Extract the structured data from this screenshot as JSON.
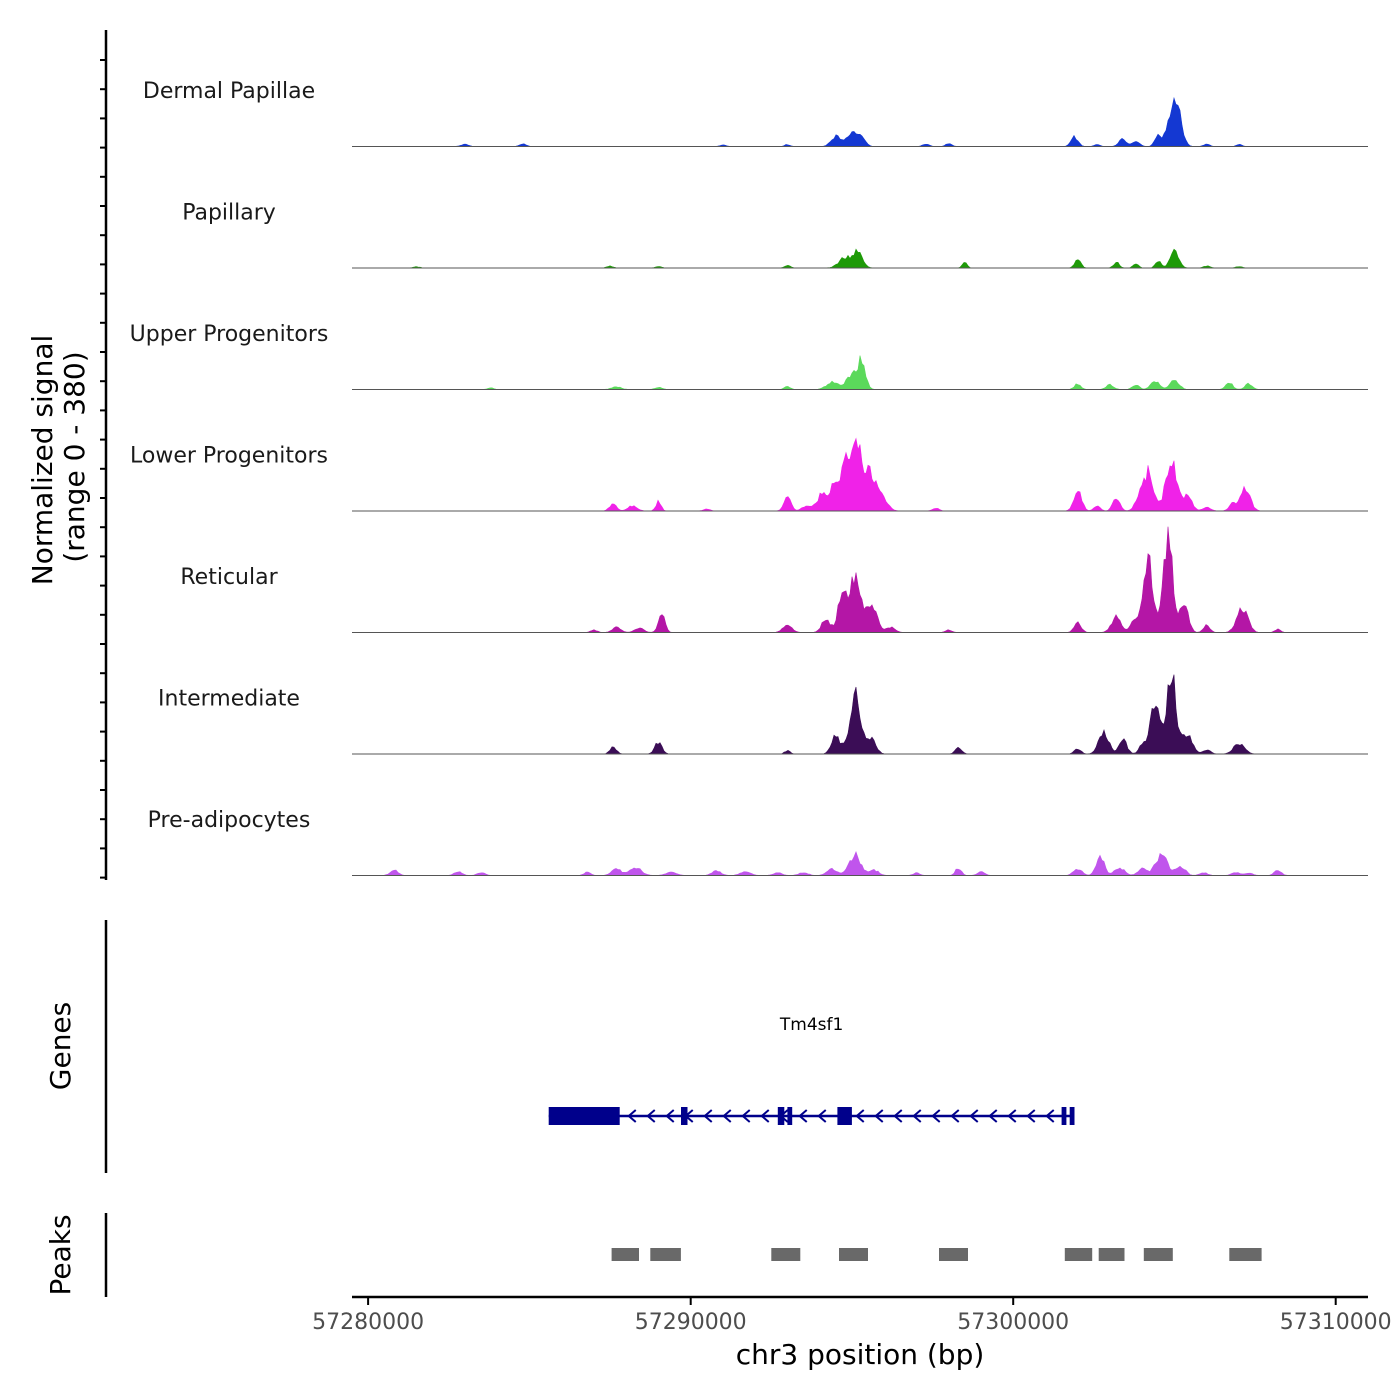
{
  "chart_data": {
    "type": "area",
    "title": "",
    "ylabel": "Normalized signal",
    "ylabel_range": "(range 0 - 380)",
    "y_range": [
      0,
      380
    ],
    "chromosome": "chr3",
    "xlabel": "chr3 position (bp)",
    "xlim": [
      57279500,
      57311000
    ],
    "x_ticks": [
      57280000,
      57290000,
      57300000,
      57310000
    ],
    "x_tick_labels": [
      "57280000",
      "57290000",
      "57300000",
      "57310000"
    ],
    "tracks": [
      {
        "name": "Dermal Papillae",
        "color": "#1438d2",
        "peaks": [
          [
            57283000,
            8,
            120
          ],
          [
            57284800,
            10,
            100
          ],
          [
            57291000,
            6,
            90
          ],
          [
            57293000,
            8,
            80
          ],
          [
            57294500,
            40,
            150
          ],
          [
            57295000,
            50,
            160
          ],
          [
            57295300,
            35,
            120
          ],
          [
            57297300,
            10,
            100
          ],
          [
            57298000,
            12,
            90
          ],
          [
            57301900,
            38,
            110
          ],
          [
            57302600,
            8,
            90
          ],
          [
            57303400,
            28,
            120
          ],
          [
            57303800,
            22,
            110
          ],
          [
            57304500,
            48,
            100
          ],
          [
            57305000,
            200,
            170
          ],
          [
            57306000,
            10,
            90
          ],
          [
            57307000,
            9,
            80
          ]
        ]
      },
      {
        "name": "Papillary",
        "color": "#1e9a08",
        "peaks": [
          [
            57281500,
            5,
            100
          ],
          [
            57287500,
            8,
            90
          ],
          [
            57289000,
            6,
            100
          ],
          [
            57293000,
            10,
            90
          ],
          [
            57294800,
            40,
            200
          ],
          [
            57295200,
            60,
            140
          ],
          [
            57298500,
            25,
            70
          ],
          [
            57302000,
            38,
            90
          ],
          [
            57303200,
            22,
            90
          ],
          [
            57303800,
            18,
            80
          ],
          [
            57304500,
            25,
            90
          ],
          [
            57305000,
            65,
            130
          ],
          [
            57306000,
            8,
            100
          ],
          [
            57307000,
            6,
            100
          ]
        ]
      },
      {
        "name": "Upper Progenitors",
        "color": "#5bd95b",
        "peaks": [
          [
            57283800,
            6,
            100
          ],
          [
            57287700,
            10,
            150
          ],
          [
            57289000,
            8,
            120
          ],
          [
            57293000,
            12,
            90
          ],
          [
            57294400,
            30,
            180
          ],
          [
            57295000,
            55,
            180
          ],
          [
            57295300,
            100,
            120
          ],
          [
            57302000,
            22,
            100
          ],
          [
            57303000,
            18,
            120
          ],
          [
            57303800,
            20,
            100
          ],
          [
            57304400,
            32,
            140
          ],
          [
            57305000,
            38,
            140
          ],
          [
            57306700,
            25,
            110
          ],
          [
            57307300,
            22,
            110
          ]
        ]
      },
      {
        "name": "Lower Progenitors",
        "color": "#f022e8",
        "peaks": [
          [
            57287600,
            28,
            110
          ],
          [
            57288200,
            20,
            140
          ],
          [
            57289000,
            36,
            80
          ],
          [
            57290500,
            8,
            100
          ],
          [
            57293000,
            55,
            110
          ],
          [
            57293600,
            22,
            140
          ],
          [
            57294100,
            70,
            160
          ],
          [
            57294500,
            110,
            140
          ],
          [
            57294800,
            190,
            110
          ],
          [
            57295150,
            260,
            170
          ],
          [
            57295600,
            140,
            180
          ],
          [
            57296000,
            40,
            150
          ],
          [
            57297600,
            12,
            100
          ],
          [
            57302000,
            80,
            120
          ],
          [
            57302600,
            20,
            100
          ],
          [
            57303200,
            50,
            110
          ],
          [
            57303900,
            45,
            130
          ],
          [
            57304200,
            150,
            150
          ],
          [
            57304900,
            200,
            170
          ],
          [
            57305400,
            60,
            140
          ],
          [
            57306000,
            15,
            120
          ],
          [
            57306800,
            30,
            110
          ],
          [
            57307200,
            85,
            150
          ]
        ]
      },
      {
        "name": "Reticular",
        "color": "#b416a6",
        "peaks": [
          [
            57287000,
            10,
            100
          ],
          [
            57287700,
            22,
            130
          ],
          [
            57288400,
            18,
            140
          ],
          [
            57289100,
            68,
            100
          ],
          [
            57293000,
            26,
            150
          ],
          [
            57294200,
            50,
            140
          ],
          [
            57294700,
            150,
            130
          ],
          [
            57295100,
            220,
            170
          ],
          [
            57295600,
            110,
            170
          ],
          [
            57296200,
            20,
            140
          ],
          [
            57298000,
            10,
            100
          ],
          [
            57302000,
            38,
            110
          ],
          [
            57303200,
            60,
            150
          ],
          [
            57303800,
            60,
            140
          ],
          [
            57304200,
            280,
            140
          ],
          [
            57304800,
            360,
            150
          ],
          [
            57305300,
            120,
            130
          ],
          [
            57306000,
            30,
            100
          ],
          [
            57307100,
            95,
            170
          ],
          [
            57308200,
            12,
            90
          ]
        ]
      },
      {
        "name": "Intermediate",
        "color": "#3b0d56",
        "peaks": [
          [
            57287600,
            26,
            100
          ],
          [
            57289000,
            45,
            110
          ],
          [
            57293000,
            14,
            80
          ],
          [
            57294500,
            75,
            130
          ],
          [
            57295100,
            230,
            170
          ],
          [
            57295600,
            60,
            140
          ],
          [
            57298300,
            25,
            100
          ],
          [
            57302000,
            22,
            100
          ],
          [
            57302800,
            90,
            150
          ],
          [
            57303400,
            60,
            120
          ],
          [
            57304000,
            40,
            100
          ],
          [
            57304400,
            200,
            150
          ],
          [
            57304900,
            310,
            150
          ],
          [
            57305400,
            70,
            160
          ],
          [
            57306000,
            15,
            120
          ],
          [
            57307000,
            40,
            170
          ]
        ]
      },
      {
        "name": "Pre-adipocytes",
        "color": "#c055ec",
        "peaks": [
          [
            57280800,
            22,
            120
          ],
          [
            57282800,
            15,
            120
          ],
          [
            57283500,
            12,
            120
          ],
          [
            57286800,
            14,
            100
          ],
          [
            57287700,
            25,
            150
          ],
          [
            57288300,
            30,
            180
          ],
          [
            57289400,
            15,
            160
          ],
          [
            57290800,
            18,
            140
          ],
          [
            57291700,
            15,
            160
          ],
          [
            57292700,
            10,
            140
          ],
          [
            57293500,
            12,
            140
          ],
          [
            57294400,
            25,
            160
          ],
          [
            57295100,
            80,
            180
          ],
          [
            57295700,
            20,
            140
          ],
          [
            57297000,
            10,
            100
          ],
          [
            57298300,
            30,
            90
          ],
          [
            57299000,
            15,
            110
          ],
          [
            57302000,
            25,
            130
          ],
          [
            57302700,
            70,
            130
          ],
          [
            57303300,
            30,
            150
          ],
          [
            57304000,
            25,
            140
          ],
          [
            57304600,
            75,
            190
          ],
          [
            57305200,
            35,
            140
          ],
          [
            57305900,
            12,
            120
          ],
          [
            57306900,
            12,
            130
          ],
          [
            57307300,
            10,
            130
          ],
          [
            57308200,
            20,
            110
          ]
        ]
      }
    ],
    "gene": {
      "name": "Tm4sf1",
      "strand": "-",
      "color": "#00008b",
      "start": 57285600,
      "end": 57301900,
      "exons": [
        {
          "start": 57285600,
          "end": 57287800,
          "thick": true
        },
        {
          "start": 57289700,
          "end": 57289900,
          "thick": false
        },
        {
          "start": 57292700,
          "end": 57292900,
          "thick": false
        },
        {
          "start": 57293000,
          "end": 57293150,
          "thick": false
        },
        {
          "start": 57294550,
          "end": 57295000,
          "thick": true
        },
        {
          "start": 57301500,
          "end": 57301650,
          "thick": false
        },
        {
          "start": 57301750,
          "end": 57301900,
          "thick": false
        }
      ]
    },
    "peaks_track": {
      "name": "Peaks",
      "color": "#696969",
      "regions": [
        [
          57287550,
          57288400
        ],
        [
          57288750,
          57289700
        ],
        [
          57292500,
          57293400
        ],
        [
          57294600,
          57295500
        ],
        [
          57297700,
          57298600
        ],
        [
          57301600,
          57302450
        ],
        [
          57302650,
          57303450
        ],
        [
          57304050,
          57304950
        ],
        [
          57306700,
          57307700
        ]
      ]
    },
    "panel_labels": {
      "genes": "Genes",
      "peaks": "Peaks"
    }
  }
}
